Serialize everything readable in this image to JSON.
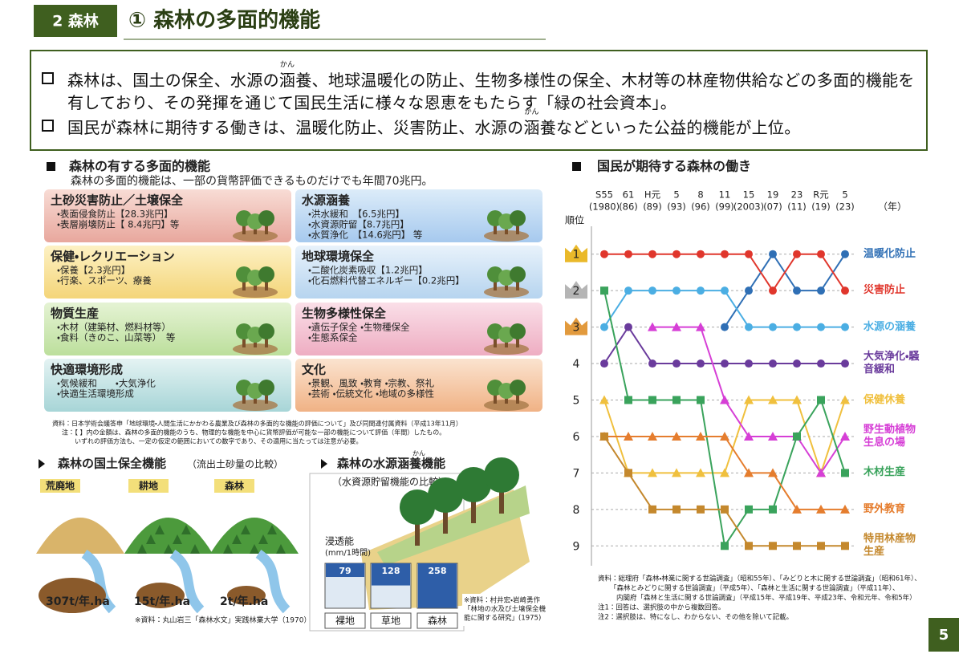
{
  "header": {
    "section": "2 森林",
    "title": "① 森林の多面的機能"
  },
  "bullets": [
    {
      "lines": [
        [
          "森林は、国土の保全、水源の",
          {
            "rb": "涵",
            "rt": "かん"
          },
          "養、地球温暖化の防止、生物多様性の保全、木材等の林産物供給などの多面的機能を"
        ],
        [
          "有しており、その発揮を通じて国民生活に様々な恩恵をもたらす「緑の社会資本」。"
        ]
      ]
    },
    {
      "lines": [
        [
          "国民が森林に期待する働きは、温暖化防止、災害防止、水源の",
          {
            "rb": "涵",
            "rt": "かん"
          },
          "養などといった公益的機能が上位。"
        ]
      ]
    }
  ],
  "functions": {
    "heading": "森林の有する多面的機能",
    "subheading": "森林の多面的機能は、一部の貨幣評価できるものだけでも年間70兆円。",
    "items": [
      {
        "title": "土砂災害防止／土壌保全",
        "lines": [
          "・表面侵食防止【28.3兆円】",
          "・表層崩壊防止【 8.4兆円】等"
        ]
      },
      {
        "title": "水源涵養",
        "lines": [
          "・洪水緩和　【6.5兆円】",
          "・水資源貯留【8.7兆円】",
          "・水質浄化　【14.6兆円】 等"
        ]
      },
      {
        "title": "保健・レクリエーション",
        "lines": [
          "・保養【2.3兆円】",
          "・行楽、スポーツ、療養"
        ]
      },
      {
        "title": "地球環境保全",
        "lines": [
          "・二酸化炭素吸収【1.2兆円】",
          "・化石燃料代替エネルギー【0.2兆円】"
        ]
      },
      {
        "title": "物質生産",
        "lines": [
          "・木材（建築材、燃料材等）",
          "・食料（きのこ、山菜等）　等"
        ]
      },
      {
        "title": "生物多様性保全",
        "lines": [
          "・遺伝子保全 ・生物種保全",
          "・生態系保全"
        ]
      },
      {
        "title": "快適環境形成",
        "lines": [
          "・気候緩和　　・大気浄化",
          "・快適生活環境形成"
        ]
      },
      {
        "title": "文化",
        "lines": [
          "・景観、風致 ・教育 ・宗教、祭礼",
          "・芸術 ・伝統文化 ・地域の多様性"
        ]
      }
    ],
    "notes": [
      "資料：日本学術会議答申「地球環境・人間生活にかかわる農業及び森林の多面的な機能の評価について」及び同関連付属資料（平成13年11月）",
      "注：【 】内の金額は、森林の多面的機能のうち、物理的な機能を中心に貨幣評価が可能な一部の機能について評価（年間）したもの。",
      "いずれの評価方法も、一定の仮定の範囲においての数字であり、その適用に当たっては注意が必要。"
    ]
  },
  "erosion": {
    "heading": "森林の国土保全機能",
    "subheading": "（流出土砂量の比較）",
    "items": [
      {
        "label": "荒廃地",
        "amount": "307t/年.ha"
      },
      {
        "label": "耕地",
        "amount": "15t/年.ha"
      },
      {
        "label": "森林",
        "amount": "2t/年.ha"
      }
    ],
    "source": "※資料：丸山岩三「森林水文」実践林業大学（1970）"
  },
  "water": {
    "heading": "森林の水源涵養機能",
    "heading_ruby": "かん",
    "subheading": "（水資源貯留機能の比較）",
    "axis_label": "浸透能",
    "unit": "(mm/1時間)",
    "categories": [
      "裸地",
      "草地",
      "森林"
    ],
    "values": [
      79,
      128,
      258
    ],
    "source": [
      "※資料：村井宏・岩崎勇作",
      "「林地の水及び土壌保全機",
      "能に関する研究」(1975)"
    ]
  },
  "chart_data": {
    "type": "line",
    "title": "国民が期待する森林の働き",
    "y_label": "順位",
    "x_unit": "（年）",
    "categories": [
      "S55",
      "61",
      "H元",
      "5",
      "8",
      "11",
      "15",
      "19",
      "23",
      "R元",
      "5"
    ],
    "category_years": [
      "(1980)",
      "(86)",
      "(89)",
      "(93)",
      "(96)",
      "(99)",
      "(2003)",
      "(07)",
      "(11)",
      "(19)",
      "(23)"
    ],
    "ylim": [
      0.5,
      9.5
    ],
    "y_inverted": true,
    "yticks": [
      1,
      2,
      3,
      4,
      5,
      6,
      7,
      8,
      9
    ],
    "grid": true,
    "series": [
      {
        "name": "温暖化防止",
        "color": "#2f6fb5",
        "marker": "circle",
        "values": [
          null,
          null,
          null,
          null,
          null,
          3,
          2,
          1,
          2,
          2,
          1
        ]
      },
      {
        "name": "災害防止",
        "color": "#e0362c",
        "marker": "circle",
        "values": [
          1,
          1,
          1,
          1,
          1,
          1,
          1,
          2,
          1,
          1,
          2
        ]
      },
      {
        "name": "水源の涵養",
        "color": "#4baee3",
        "marker": "circle",
        "values": [
          3,
          2,
          2,
          2,
          2,
          2,
          3,
          3,
          3,
          3,
          3
        ]
      },
      {
        "name": "大気浄化・騒音緩和",
        "color": "#6a3b9c",
        "marker": "circle",
        "values": [
          4,
          3,
          4,
          4,
          4,
          4,
          4,
          4,
          4,
          4,
          4
        ]
      },
      {
        "name": "保健休養",
        "color": "#f0c03e",
        "marker": "triangle",
        "values": [
          5,
          7,
          7,
          7,
          7,
          7,
          5,
          5,
          5,
          7,
          5
        ]
      },
      {
        "name": "野生動植物生息の場",
        "color": "#d63fd6",
        "marker": "triangle",
        "values": [
          null,
          null,
          3,
          3,
          3,
          5,
          6,
          6,
          6,
          7,
          6
        ]
      },
      {
        "name": "木材生産",
        "color": "#3aa35c",
        "marker": "square",
        "values": [
          2,
          5,
          5,
          5,
          5,
          9,
          8,
          8,
          6,
          5,
          7
        ]
      },
      {
        "name": "野外教育",
        "color": "#e57d2e",
        "marker": "triangle",
        "values": [
          6,
          6,
          6,
          6,
          6,
          6,
          7,
          7,
          8,
          8,
          8
        ]
      },
      {
        "name": "特用林産物生産",
        "color": "#c4882d",
        "marker": "square",
        "values": [
          6,
          7,
          8,
          8,
          8,
          8,
          9,
          9,
          9,
          9,
          9
        ]
      }
    ]
  },
  "chart_notes": [
    "資料：総理府「森林・林業に関する世論調査」（昭和55年）、「みどりと木に関する世論調査」（昭和61年）、",
    "「森林とみどりに関する世論調査」（平成5年）、「森林と生活に関する世論調査」（平成11年）、",
    "内閣府「森林と生活に関する世論調査」（平成15年、平成19年、平成23年、令和元年、令和5年）",
    "注1：回答は、選択肢の中から複数回答。",
    "注2：選択肢は、特になし、わからない、その他を除いて記載。"
  ],
  "page_number": "5"
}
